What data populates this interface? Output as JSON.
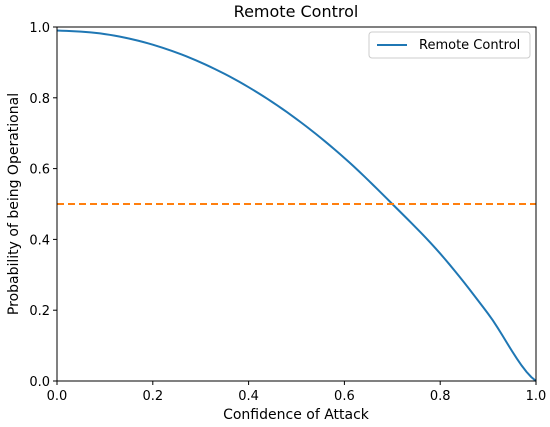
{
  "chart_data": {
    "type": "line",
    "title": "Remote Control",
    "xlabel": "Confidence of Attack",
    "ylabel": "Probability of being Operational",
    "xlim": [
      0.0,
      1.0
    ],
    "ylim": [
      0.0,
      1.0
    ],
    "x_ticks": [
      "0.0",
      "0.2",
      "0.4",
      "0.6",
      "0.8",
      "1.0"
    ],
    "y_ticks": [
      "0.0",
      "0.2",
      "0.4",
      "0.6",
      "0.8",
      "1.0"
    ],
    "grid": false,
    "legend": {
      "position": "top-right",
      "entries": [
        "Remote Control"
      ]
    },
    "series": [
      {
        "name": "Remote Control",
        "color": "#1f77b4",
        "style": "solid",
        "x": [
          0.0,
          0.1,
          0.2,
          0.3,
          0.4,
          0.5,
          0.6,
          0.7,
          0.8,
          0.9,
          1.0
        ],
        "y": [
          0.99,
          0.98,
          0.95,
          0.9,
          0.83,
          0.74,
          0.63,
          0.5,
          0.36,
          0.19,
          0.0
        ]
      },
      {
        "color": "#ff7f0e",
        "style": "dashed",
        "x": [
          0.0,
          1.0
        ],
        "y": [
          0.5,
          0.5
        ]
      }
    ]
  }
}
